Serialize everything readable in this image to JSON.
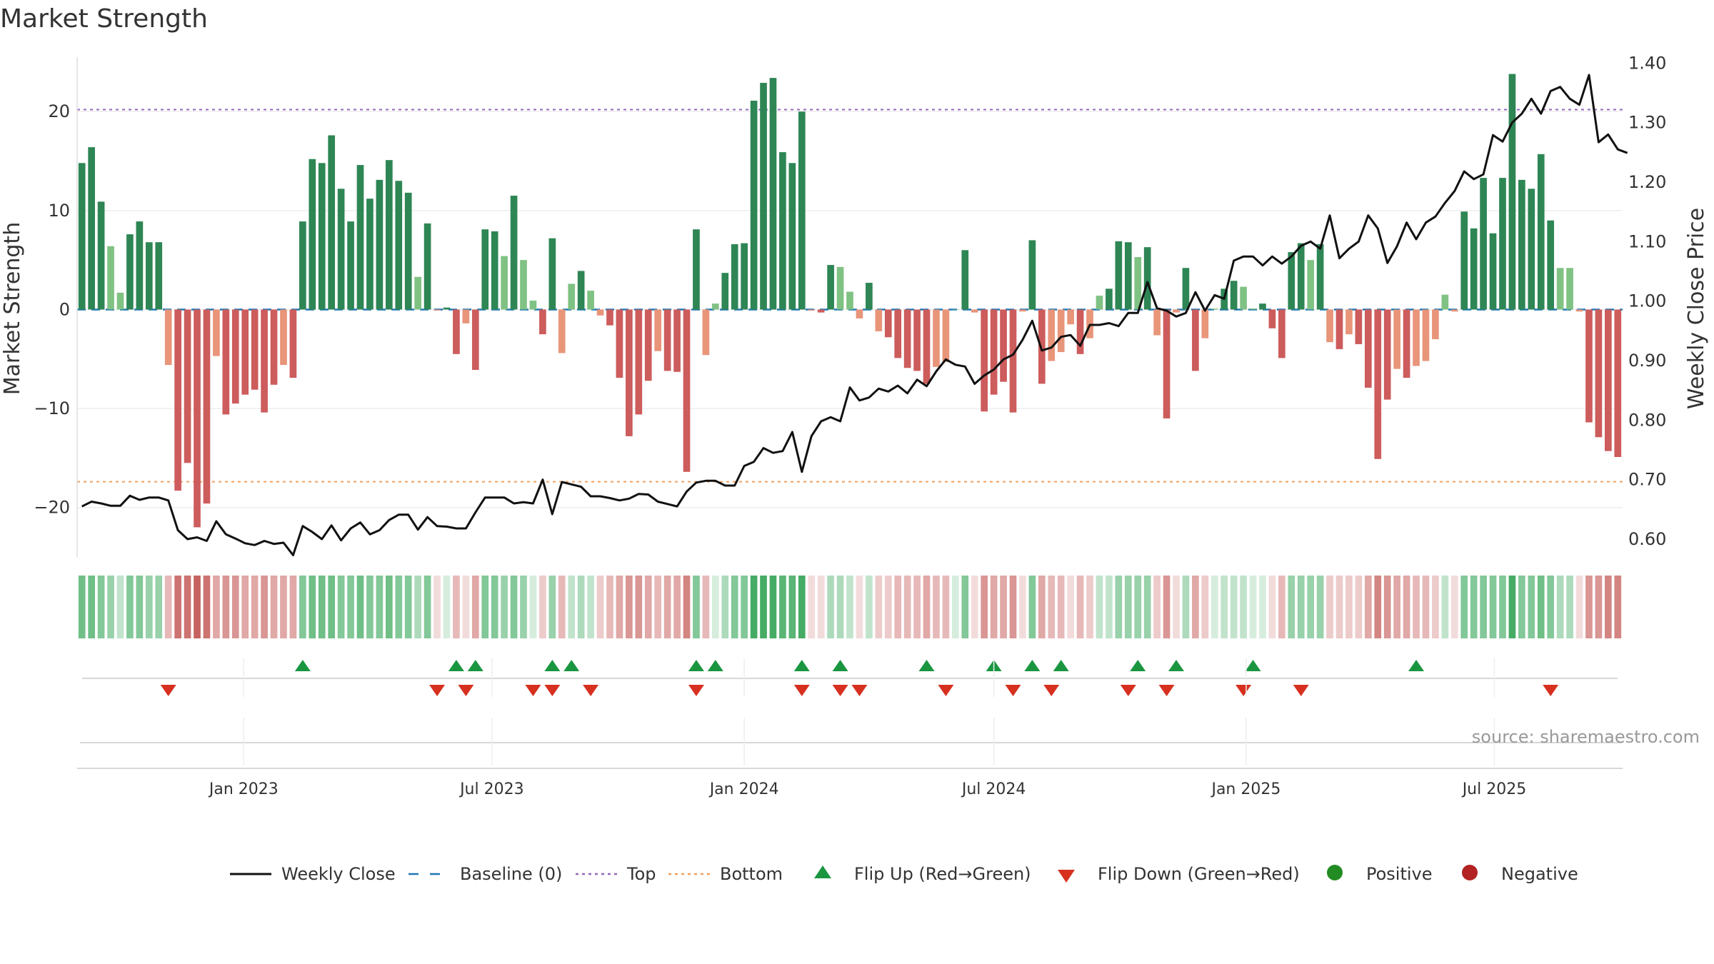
{
  "title": "Market Strength",
  "source": "source: sharemaestro.com",
  "colors": {
    "strong_pos": "#2e8655",
    "weak_pos": "#80c283",
    "strong_neg": "#cd5c5c",
    "weak_neg": "#e8957a",
    "line": "#111111",
    "baseline": "#1f77b4",
    "top": "#9467bd",
    "bottom": "#f0a060",
    "flip_up": "#1a9641",
    "flip_down": "#d7301f",
    "positive": "#228b22",
    "negative": "#b22222"
  },
  "chart_data": {
    "type": "bar+line",
    "x_start": "2022-09-05",
    "x_step_days": 7,
    "x_ticks": [
      "Jan 2023",
      "Jul 2023",
      "Jan 2024",
      "Jul 2024",
      "Jan 2025",
      "Jul 2025"
    ],
    "x_tick_dates": [
      "2023-01-01",
      "2023-07-01",
      "2024-01-01",
      "2024-07-01",
      "2025-01-01",
      "2025-07-01"
    ],
    "y_left": {
      "label": "Market Strength",
      "ticks": [
        -20,
        -10,
        0,
        10,
        20
      ],
      "ylim": [
        -25,
        25.5
      ]
    },
    "y_right": {
      "label": "Weekly Close Price",
      "ticks": [
        "0.60",
        "0.70",
        "0.80",
        "0.90",
        "1.00",
        "1.10",
        "1.20",
        "1.30",
        "1.40"
      ],
      "ylim": [
        0.57,
        1.41
      ]
    },
    "top_level": 20.2,
    "bottom_level": -17.4,
    "strength": [
      14.8,
      16.4,
      10.9,
      6.4,
      1.7,
      7.6,
      8.9,
      6.8,
      6.8,
      -5.6,
      -18.3,
      -15.5,
      -22,
      -19.6,
      -4.7,
      -10.6,
      -9.5,
      -8.6,
      -8.1,
      -10.4,
      -7.6,
      -5.6,
      -6.9,
      8.9,
      15.2,
      14.8,
      17.6,
      12.2,
      8.9,
      14.6,
      11.2,
      13.1,
      15.1,
      13.0,
      11.8,
      3.3,
      8.7,
      -0.1,
      0.2,
      -4.5,
      -1.4,
      -6.1,
      8.1,
      7.9,
      5.4,
      11.5,
      5.0,
      0.9,
      -2.5,
      7.2,
      -4.4,
      2.6,
      3.9,
      1.9,
      -0.6,
      -1.6,
      -6.9,
      -12.8,
      -10.6,
      -7.2,
      -4.2,
      -6.2,
      -6.3,
      -16.4,
      8.1,
      -4.6,
      0.6,
      3.7,
      6.6,
      6.7,
      21.1,
      22.9,
      23.4,
      15.9,
      14.8,
      20.0,
      -0.1,
      -0.3,
      4.5,
      4.3,
      1.8,
      -0.9,
      2.7,
      -2.2,
      -2.8,
      -4.9,
      -5.9,
      -6.2,
      -7.5,
      -5.8,
      -5.3,
      0,
      6.0,
      -0.3,
      -10.3,
      -8.6,
      -7.3,
      -10.4,
      -0.2,
      7.0,
      -7.5,
      -5.2,
      -4.3,
      -1.5,
      -4.5,
      -2.9,
      1.4,
      2.1,
      6.9,
      6.8,
      5.3,
      6.3,
      -2.6,
      -11.0,
      -0.3,
      4.2,
      -6.2,
      -2.9,
      0.1,
      2.1,
      2.9,
      2.3,
      0.1,
      0.6,
      -1.9,
      -4.9,
      5.8,
      6.7,
      5.0,
      6.6,
      -3.3,
      -4.0,
      -2.5,
      -3.5,
      -7.9,
      -15.1,
      -9.1,
      -6.0,
      -6.9,
      -5.7,
      -5.2,
      -3.0,
      1.5,
      -0.2,
      9.9,
      8.2,
      13.3,
      7.7,
      13.3,
      23.8,
      13.1,
      12.2,
      15.7,
      9.0,
      4.2,
      4.2,
      -0.2,
      -11.4,
      -12.9,
      -14.3,
      -14.9
    ],
    "close": [
      0.655,
      0.663,
      0.66,
      0.656,
      0.656,
      0.673,
      0.666,
      0.67,
      0.67,
      0.665,
      0.615,
      0.6,
      0.603,
      0.597,
      0.63,
      0.608,
      0.601,
      0.593,
      0.59,
      0.597,
      0.592,
      0.594,
      0.573,
      0.622,
      0.612,
      0.6,
      0.623,
      0.598,
      0.618,
      0.628,
      0.608,
      0.615,
      0.632,
      0.641,
      0.641,
      0.616,
      0.637,
      0.622,
      0.621,
      0.618,
      0.618,
      0.645,
      0.67,
      0.67,
      0.67,
      0.66,
      0.662,
      0.66,
      0.7,
      0.642,
      0.696,
      0.692,
      0.688,
      0.672,
      0.672,
      0.669,
      0.665,
      0.668,
      0.676,
      0.675,
      0.663,
      0.659,
      0.655,
      0.68,
      0.695,
      0.698,
      0.698,
      0.69,
      0.69,
      0.723,
      0.73,
      0.753,
      0.745,
      0.748,
      0.78,
      0.713,
      0.773,
      0.798,
      0.805,
      0.798,
      0.855,
      0.833,
      0.838,
      0.853,
      0.848,
      0.858,
      0.845,
      0.868,
      0.857,
      0.882,
      0.902,
      0.893,
      0.89,
      0.861,
      0.875,
      0.885,
      0.902,
      0.91,
      0.935,
      0.967,
      0.917,
      0.922,
      0.94,
      0.943,
      0.925,
      0.96,
      0.96,
      0.963,
      0.958,
      0.98,
      0.98,
      1.032,
      0.988,
      0.984,
      0.974,
      0.98,
      1.015,
      0.984,
      1.01,
      1.004,
      1.068,
      1.075,
      1.075,
      1.06,
      1.075,
      1.063,
      1.075,
      1.093,
      1.1,
      1.088,
      1.144,
      1.072,
      1.088,
      1.1,
      1.144,
      1.122,
      1.064,
      1.092,
      1.132,
      1.104,
      1.132,
      1.142,
      1.165,
      1.185,
      1.218,
      1.205,
      1.213,
      1.279,
      1.268,
      1.3,
      1.315,
      1.34,
      1.315,
      1.353,
      1.36,
      1.34,
      1.33,
      1.38,
      1.267,
      1.28,
      1.255,
      1.249
    ],
    "heat": [
      0.7,
      0.7,
      0.6,
      0.5,
      0.3,
      0.6,
      0.6,
      0.5,
      0.5,
      -0.4,
      -0.8,
      -0.8,
      -0.9,
      -0.8,
      -0.5,
      -0.6,
      -0.6,
      -0.5,
      -0.5,
      -0.6,
      -0.5,
      -0.5,
      -0.5,
      0.6,
      0.7,
      0.7,
      0.7,
      0.6,
      0.6,
      0.7,
      0.6,
      0.6,
      0.7,
      0.6,
      0.6,
      0.4,
      0.6,
      -0.2,
      0.2,
      -0.4,
      -0.2,
      -0.5,
      0.6,
      0.6,
      0.5,
      0.6,
      0.5,
      0.2,
      -0.3,
      0.5,
      -0.4,
      0.3,
      0.4,
      0.3,
      -0.3,
      -0.4,
      -0.5,
      -0.6,
      -0.6,
      -0.5,
      -0.4,
      -0.5,
      -0.5,
      -0.7,
      0.6,
      -0.4,
      0.2,
      0.4,
      0.6,
      0.6,
      0.9,
      0.9,
      0.9,
      0.8,
      0.8,
      0.9,
      -0.2,
      -0.2,
      0.4,
      0.4,
      0.3,
      -0.2,
      0.3,
      -0.3,
      -0.3,
      -0.4,
      -0.4,
      -0.4,
      -0.5,
      -0.4,
      -0.4,
      0.2,
      0.6,
      -0.2,
      -0.6,
      -0.5,
      -0.5,
      -0.6,
      -0.2,
      0.6,
      -0.5,
      -0.4,
      -0.4,
      -0.2,
      -0.4,
      -0.3,
      0.3,
      0.3,
      0.5,
      0.5,
      0.5,
      0.5,
      -0.3,
      -0.6,
      -0.2,
      0.4,
      -0.5,
      -0.3,
      0.2,
      0.3,
      0.3,
      0.3,
      0.2,
      0.2,
      -0.2,
      -0.4,
      0.5,
      0.5,
      0.5,
      0.5,
      -0.3,
      -0.3,
      -0.3,
      -0.3,
      -0.5,
      -0.7,
      -0.6,
      -0.5,
      -0.5,
      -0.4,
      -0.4,
      -0.3,
      0.3,
      -0.2,
      0.6,
      0.6,
      0.6,
      0.6,
      0.6,
      0.9,
      0.6,
      0.6,
      0.7,
      0.6,
      0.4,
      0.4,
      -0.2,
      -0.6,
      -0.6,
      -0.7,
      -0.7
    ],
    "flip_up_weeks": [
      23,
      39,
      41,
      49,
      51,
      64,
      66,
      75,
      79,
      88,
      95,
      99,
      102,
      110,
      114,
      122,
      139
    ],
    "flip_down_weeks": [
      9,
      37,
      40,
      47,
      49,
      53,
      64,
      75,
      79,
      81,
      90,
      97,
      101,
      109,
      113,
      121,
      127,
      153
    ],
    "legend": [
      {
        "key": "line",
        "label": "Weekly Close"
      },
      {
        "key": "baseline",
        "label": "Baseline (0)"
      },
      {
        "key": "top",
        "label": "Top"
      },
      {
        "key": "bottom",
        "label": "Bottom"
      },
      {
        "key": "flip_up",
        "label": "Flip Up (Red→Green)"
      },
      {
        "key": "flip_down",
        "label": "Flip Down (Green→Red)"
      },
      {
        "key": "positive",
        "label": "Positive"
      },
      {
        "key": "negative",
        "label": "Negative"
      }
    ]
  }
}
